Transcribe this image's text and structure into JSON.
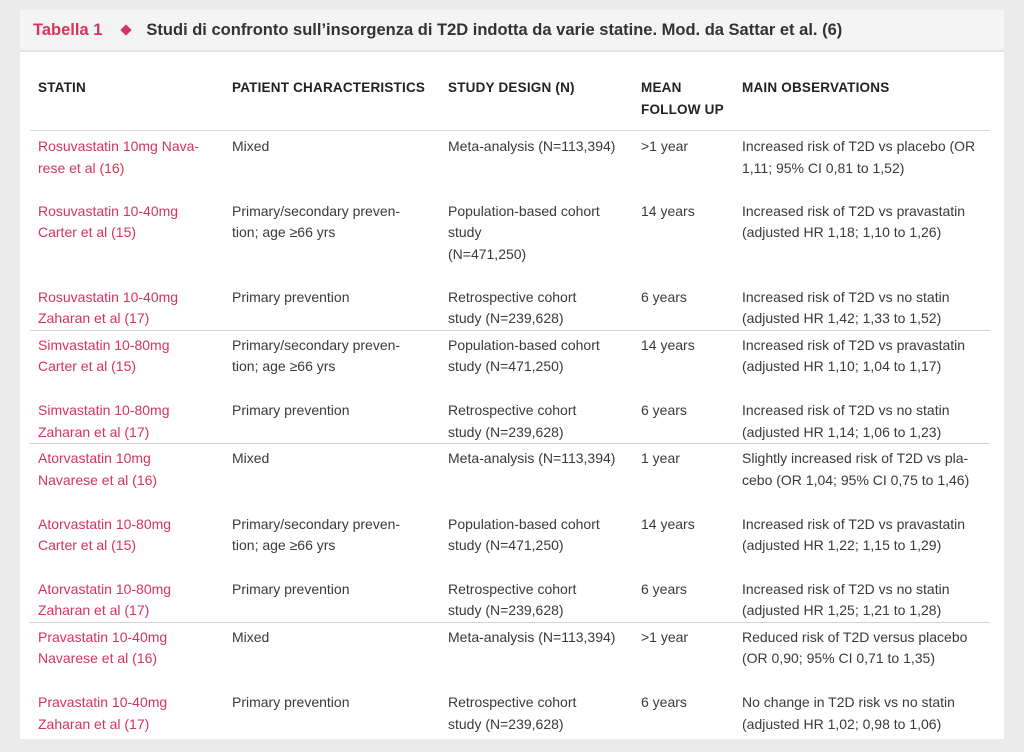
{
  "caption": {
    "table_number": "Tabella 1",
    "title": "Studi di confronto sull’insorgenza di T2D indotta da varie statine. Mod. da Sattar et al. (6)"
  },
  "columns": {
    "statin": "STATIN",
    "patient": "PATIENT CHARACTERISTICS",
    "design": "STUDY DESIGN (N)",
    "followup_1": "MEAN",
    "followup_2": "FOLLOW UP",
    "observations": "MAIN OBSERVATIONS"
  },
  "rows": [
    {
      "statin": [
        "Rosuvastatin 10mg Nava-",
        "rese et al (16)"
      ],
      "patient": [
        "Mixed"
      ],
      "design": [
        "Meta-analysis (N=113,394)"
      ],
      "followup": ">1 year",
      "observations": [
        "Increased risk of T2D vs placebo (OR",
        "1,11; 95% CI 0,81 to 1,52)"
      ]
    },
    {
      "statin": [
        "Rosuvastatin 10-40mg",
        "Carter et al (15)"
      ],
      "patient": [
        "Primary/secondary preven-",
        "tion; age ≥66 yrs"
      ],
      "design": [
        "Population-based cohort",
        "study",
        "(N=471,250)"
      ],
      "followup": "14 years",
      "observations": [
        "Increased risk of T2D vs pravastatin",
        "(adjusted HR 1,18; 1,10 to 1,26)"
      ]
    },
    {
      "statin": [
        "Rosuvastatin 10-40mg",
        "Zaharan et al (17)"
      ],
      "patient": [
        "Primary prevention"
      ],
      "design": [
        "Retrospective cohort",
        "study (N=239,628)"
      ],
      "followup": "6 years",
      "observations": [
        "Increased risk of T2D vs no statin",
        "(adjusted HR 1,42; 1,33 to 1,52)"
      ]
    },
    {
      "statin": [
        "Simvastatin 10-80mg",
        "Carter et al (15)"
      ],
      "patient": [
        "Primary/secondary preven-",
        "tion; age ≥66 yrs"
      ],
      "design": [
        "Population-based cohort",
        "study (N=471,250)"
      ],
      "followup": "14 years",
      "observations": [
        "Increased risk of T2D vs pravastatin",
        "(adjusted HR 1,10; 1,04 to 1,17)"
      ]
    },
    {
      "statin": [
        "Simvastatin 10-80mg",
        "Zaharan et al (17)"
      ],
      "patient": [
        "Primary prevention"
      ],
      "design": [
        "Retrospective cohort",
        "study (N=239,628)"
      ],
      "followup": "6 years",
      "observations": [
        "Increased risk of T2D vs no statin",
        "(adjusted HR 1,14; 1,06 to 1,23)"
      ]
    },
    {
      "statin": [
        "Atorvastatin 10mg",
        "Navarese et al (16)"
      ],
      "patient": [
        "Mixed"
      ],
      "design": [
        "Meta-analysis (N=113,394)"
      ],
      "followup": "1 year",
      "observations": [
        "Slightly increased risk of T2D vs pla-",
        "cebo (OR 1,04; 95% CI 0,75 to 1,46)"
      ]
    },
    {
      "statin": [
        "Atorvastatin 10-80mg",
        "Carter et al (15)"
      ],
      "patient": [
        "Primary/secondary preven-",
        "tion; age ≥66 yrs"
      ],
      "design": [
        "Population-based cohort",
        "study (N=471,250)"
      ],
      "followup": "14 years",
      "observations": [
        "Increased risk of T2D vs pravastatin",
        "(adjusted HR 1,22; 1,15 to 1,29)"
      ]
    },
    {
      "statin": [
        "Atorvastatin 10-80mg",
        "Zaharan et al (17)"
      ],
      "patient": [
        "Primary prevention"
      ],
      "design": [
        "Retrospective cohort",
        "study (N=239,628)"
      ],
      "followup": "6 years",
      "observations": [
        "Increased risk of T2D vs no statin",
        "(adjusted HR 1,25; 1,21 to 1,28)"
      ]
    },
    {
      "statin": [
        "Pravastatin 10-40mg",
        "Navarese et al (16)"
      ],
      "patient": [
        "Mixed"
      ],
      "design": [
        "Meta-analysis (N=113,394)"
      ],
      "followup": ">1 year",
      "observations": [
        "Reduced risk of T2D versus placebo",
        "(OR 0,90; 95% CI 0,71 to 1,35)"
      ]
    },
    {
      "statin": [
        "Pravastatin 10-40mg",
        "Zaharan et al (17)"
      ],
      "patient": [
        "Primary prevention"
      ],
      "design": [
        "Retrospective cohort",
        "study (N=239,628)"
      ],
      "followup": "6 years",
      "observations": [
        "No change in T2D risk vs no statin",
        "(adjusted HR 1,02; 0,98 to 1,06)"
      ]
    }
  ],
  "colors": {
    "accent": "#d6335d",
    "text": "#3a3a3a",
    "background": "#ebebeb"
  }
}
